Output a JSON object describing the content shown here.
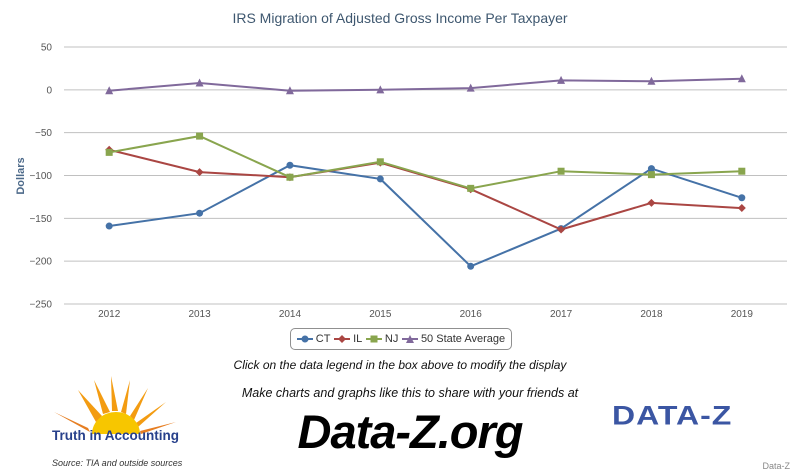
{
  "chart_data": {
    "type": "line",
    "title": "IRS Migration of Adjusted Gross Income Per Taxpayer",
    "xlabel": "",
    "ylabel": "Dollars",
    "categories": [
      "2012",
      "2013",
      "2014",
      "2015",
      "2016",
      "2017",
      "2018",
      "2019"
    ],
    "y_ticks": [
      50,
      0,
      -50,
      -100,
      -150,
      -200,
      -250
    ],
    "y_tick_labels": [
      "50",
      "0",
      "−50",
      "−100",
      "−150",
      "−200",
      "−250"
    ],
    "ylim": [
      -250,
      50
    ],
    "grid": true,
    "legend_position": "bottom-center",
    "series": [
      {
        "name": "CT",
        "color": "#4572a7",
        "marker": "circle",
        "values": [
          -159,
          -144,
          -88,
          -104,
          -206,
          -162,
          -92,
          -126
        ]
      },
      {
        "name": "IL",
        "color": "#aa4643",
        "marker": "diamond",
        "values": [
          -70,
          -96,
          -102,
          -85,
          -116,
          -163,
          -132,
          -138
        ]
      },
      {
        "name": "NJ",
        "color": "#89a54e",
        "marker": "square",
        "values": [
          -73,
          -54,
          -102,
          -84,
          -115,
          -95,
          -99,
          -95
        ]
      },
      {
        "name": "50 State Average",
        "color": "#80699b",
        "marker": "triangle",
        "values": [
          -1,
          8,
          -1,
          0,
          2,
          11,
          10,
          13
        ]
      }
    ]
  },
  "footer": {
    "instruction": "Click on the data legend in the box above to modify the display",
    "make_charts": "Make charts and graphs like this to share with your friends at",
    "url": "Data-Z.org",
    "tia_name": "Truth in Accounting",
    "source": "Source: TIA and outside sources",
    "dataz_logo": "DATA-Z",
    "credit": "Data-Z"
  }
}
